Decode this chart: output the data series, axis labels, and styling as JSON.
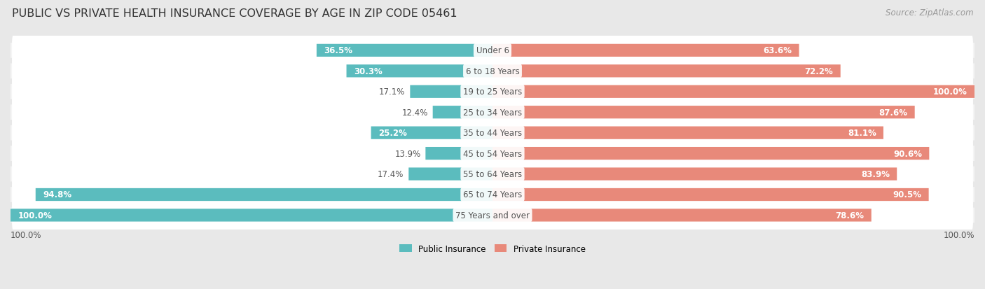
{
  "title": "PUBLIC VS PRIVATE HEALTH INSURANCE COVERAGE BY AGE IN ZIP CODE 05461",
  "source": "Source: ZipAtlas.com",
  "categories": [
    "Under 6",
    "6 to 18 Years",
    "19 to 25 Years",
    "25 to 34 Years",
    "35 to 44 Years",
    "45 to 54 Years",
    "55 to 64 Years",
    "65 to 74 Years",
    "75 Years and over"
  ],
  "public_values": [
    36.5,
    30.3,
    17.1,
    12.4,
    25.2,
    13.9,
    17.4,
    94.8,
    100.0
  ],
  "private_values": [
    63.6,
    72.2,
    100.0,
    87.6,
    81.1,
    90.6,
    83.9,
    90.5,
    78.6
  ],
  "public_color": "#5bbcbe",
  "private_color": "#e8897a",
  "public_label": "Public Insurance",
  "private_label": "Private Insurance",
  "background_color": "#e8e8e8",
  "bar_bg_color": "#ffffff",
  "row_bg_color": "#f5f5f5",
  "title_fontsize": 11.5,
  "source_fontsize": 8.5,
  "label_fontsize": 8.5,
  "value_fontsize": 8.5,
  "max_value": 100.0,
  "axis_label_left": "100.0%",
  "axis_label_right": "100.0%"
}
